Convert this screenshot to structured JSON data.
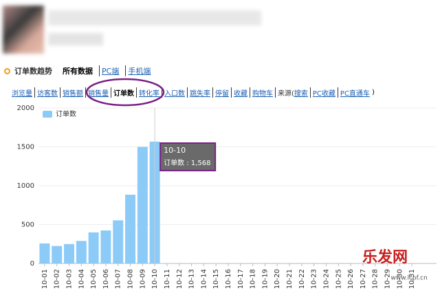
{
  "header": {
    "title": "订单数趋势",
    "filters": [
      "所有数据",
      "PC端",
      "手机端"
    ]
  },
  "tabs": [
    "浏览量",
    "访客数",
    "销售额",
    "销售量",
    "订单数",
    "转化率",
    "入口数",
    "跳失率",
    "停留",
    "收藏",
    "购物车"
  ],
  "source": {
    "label": "来源(",
    "links": [
      "搜索",
      "PC收藏",
      "PC直通车"
    ],
    "end": ")"
  },
  "watermark": {
    "name": "乐发网",
    "url": "www.lcpf.cn"
  },
  "chart_data": {
    "type": "bar",
    "categories": [
      "10-01",
      "10-02",
      "10-03",
      "10-04",
      "10-05",
      "10-06",
      "10-07",
      "10-08",
      "10-09",
      "10-10",
      "10-11",
      "10-12",
      "10-13",
      "10-14",
      "10-15",
      "10-16",
      "10-17",
      "10-18",
      "10-19",
      "10-20",
      "10-21",
      "10-22",
      "10-23",
      "10-24",
      "10-25",
      "10-26",
      "10-27",
      "10-28",
      "10-29",
      "10-30",
      "10-31"
    ],
    "series": [
      {
        "name": "订单数",
        "color": "#8ccbf7",
        "values": [
          258,
          225,
          250,
          290,
          400,
          425,
          555,
          885,
          1500,
          1568,
          null,
          null,
          null,
          null,
          null,
          null,
          null,
          null,
          null,
          null,
          null,
          null,
          null,
          null,
          null,
          null,
          null,
          null,
          null,
          null,
          null
        ]
      }
    ],
    "ylim": [
      0,
      2000
    ],
    "yticks": [
      0,
      500,
      1000,
      1500,
      2000
    ],
    "grid": true,
    "legend": "top-left",
    "tooltip": {
      "title": "10-10",
      "label": "订单数 : 1,568"
    }
  }
}
